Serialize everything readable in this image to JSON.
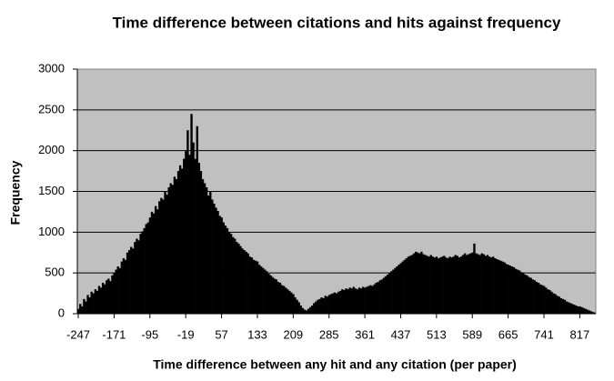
{
  "chart_data": {
    "type": "bar",
    "title": "Time difference between citations and hits against frequency",
    "x_label": "Time difference between any hit and any citation (per paper)",
    "y_label": "Frequency",
    "color": "#000000",
    "background": "#c0c0c0",
    "grid": true,
    "ylim": [
      0,
      3000
    ],
    "yticks": [
      0,
      500,
      1000,
      1500,
      2000,
      2500,
      3000
    ],
    "categories": [
      "-247",
      null,
      null,
      null,
      null,
      null,
      null,
      null,
      null,
      null,
      null,
      null,
      null,
      null,
      null,
      null,
      null,
      null,
      null,
      "-171",
      null,
      null,
      null,
      null,
      null,
      null,
      null,
      null,
      null,
      null,
      null,
      null,
      null,
      null,
      null,
      null,
      null,
      null,
      "-95",
      null,
      null,
      null,
      null,
      null,
      null,
      null,
      null,
      null,
      null,
      null,
      null,
      null,
      null,
      null,
      null,
      null,
      null,
      "-19",
      null,
      null,
      null,
      null,
      null,
      null,
      null,
      null,
      null,
      null,
      null,
      null,
      null,
      null,
      null,
      null,
      null,
      null,
      "57",
      null,
      null,
      null,
      null,
      null,
      null,
      null,
      null,
      null,
      null,
      null,
      null,
      null,
      null,
      null,
      null,
      null,
      null,
      "133",
      null,
      null,
      null,
      null,
      null,
      null,
      null,
      null,
      null,
      null,
      null,
      null,
      null,
      null,
      null,
      null,
      null,
      null,
      "209",
      null,
      null,
      null,
      null,
      null,
      null,
      null,
      null,
      null,
      null,
      null,
      null,
      null,
      null,
      null,
      null,
      null,
      null,
      "285",
      null,
      null,
      null,
      null,
      null,
      null,
      null,
      null,
      null,
      null,
      null,
      null,
      null,
      null,
      null,
      null,
      null,
      null,
      "361",
      null,
      null,
      null,
      null,
      null,
      null,
      null,
      null,
      null,
      null,
      null,
      null,
      null,
      null,
      null,
      null,
      null,
      null,
      "437",
      null,
      null,
      null,
      null,
      null,
      null,
      null,
      null,
      null,
      null,
      null,
      null,
      null,
      null,
      null,
      null,
      null,
      null,
      "513",
      null,
      null,
      null,
      null,
      null,
      null,
      null,
      null,
      null,
      null,
      null,
      null,
      null,
      null,
      null,
      null,
      null,
      null,
      "589",
      null,
      null,
      null,
      null,
      null,
      null,
      null,
      null,
      null,
      null,
      null,
      null,
      null,
      null,
      null,
      null,
      null,
      null,
      "665",
      null,
      null,
      null,
      null,
      null,
      null,
      null,
      null,
      null,
      null,
      null,
      null,
      null,
      null,
      null,
      null,
      null,
      null,
      "741",
      null,
      null,
      null,
      null,
      null,
      null,
      null,
      null,
      null,
      null,
      null,
      null,
      null,
      null,
      null,
      null,
      null,
      null,
      "817",
      null,
      null,
      null,
      null,
      null,
      null,
      null,
      null
    ],
    "values": [
      60,
      120,
      90,
      180,
      150,
      230,
      200,
      270,
      250,
      300,
      280,
      340,
      320,
      380,
      360,
      410,
      430,
      400,
      470,
      500,
      540,
      580,
      560,
      640,
      680,
      660,
      750,
      780,
      820,
      800,
      880,
      920,
      900,
      980,
      1010,
      1050,
      1100,
      1120,
      1180,
      1250,
      1230,
      1320,
      1280,
      1380,
      1420,
      1400,
      1500,
      1460,
      1550,
      1600,
      1580,
      1680,
      1650,
      1750,
      1820,
      1780,
      1900,
      2000,
      2250,
      1950,
      2450,
      2100,
      1900,
      2300,
      1850,
      1750,
      1650,
      1600,
      1550,
      1450,
      1500,
      1400,
      1350,
      1300,
      1260,
      1200,
      1180,
      1120,
      1080,
      1050,
      1000,
      980,
      940,
      920,
      880,
      860,
      830,
      800,
      780,
      760,
      740,
      700,
      690,
      660,
      650,
      640,
      600,
      580,
      560,
      540,
      520,
      490,
      470,
      450,
      430,
      420,
      390,
      380,
      350,
      340,
      320,
      300,
      280,
      260,
      240,
      200,
      170,
      140,
      100,
      70,
      50,
      40,
      60,
      80,
      100,
      130,
      150,
      170,
      180,
      200,
      190,
      220,
      210,
      230,
      240,
      250,
      260,
      250,
      270,
      280,
      300,
      290,
      310,
      300,
      320,
      310,
      330,
      310,
      300,
      320,
      310,
      330,
      320,
      330,
      340,
      350,
      340,
      360,
      380,
      390,
      410,
      420,
      440,
      460,
      480,
      500,
      520,
      540,
      560,
      580,
      600,
      620,
      640,
      660,
      680,
      700,
      710,
      720,
      740,
      760,
      750,
      740,
      760,
      730,
      720,
      710,
      700,
      720,
      700,
      690,
      700,
      680,
      690,
      700,
      710,
      690,
      680,
      700,
      690,
      700,
      720,
      710,
      690,
      700,
      720,
      740,
      720,
      730,
      740,
      750,
      860,
      740,
      730,
      720,
      740,
      730,
      710,
      720,
      700,
      690,
      700,
      680,
      670,
      660,
      650,
      640,
      630,
      610,
      600,
      590,
      580,
      570,
      550,
      540,
      530,
      510,
      500,
      480,
      470,
      450,
      440,
      420,
      410,
      390,
      380,
      360,
      350,
      340,
      320,
      300,
      290,
      270,
      250,
      240,
      220,
      210,
      190,
      180,
      170,
      150,
      140,
      130,
      120,
      110,
      100,
      90,
      90,
      80,
      70,
      60,
      50,
      40,
      30,
      20,
      15
    ]
  }
}
